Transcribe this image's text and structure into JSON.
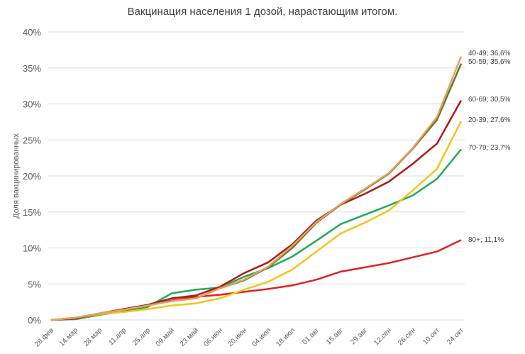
{
  "chart_data": {
    "type": "line",
    "title": "Вакцинация населения 1 дозой, нарастающим итогом.",
    "xlabel": "",
    "ylabel": "Доля вакцинированных",
    "ylim": [
      0,
      40
    ],
    "yticks": [
      "0%",
      "5%",
      "10%",
      "15%",
      "20%",
      "25%",
      "30%",
      "35%",
      "40%"
    ],
    "grid": true,
    "legend_position": "right end labels",
    "categories": [
      "28.фев",
      "14.мар",
      "28.мар",
      "11.апр",
      "25.апр",
      "09.май",
      "23.май",
      "06.июн",
      "20.июн",
      "04.июл",
      "18.июл",
      "01.авг",
      "15.авг",
      "29.авг",
      "12.сен",
      "26.сен",
      "10.окт",
      "24.окт"
    ],
    "series": [
      {
        "name": "40-49",
        "label": "40-49; 36,6%",
        "color": "#e8a060",
        "values": [
          0,
          0.3,
          0.9,
          1.4,
          2.0,
          2.6,
          3.0,
          4.4,
          5.6,
          7.4,
          10.3,
          13.6,
          16.1,
          18.2,
          20.4,
          23.9,
          28.2,
          36.6
        ]
      },
      {
        "name": "50-59",
        "label": "50-59; 35,6%",
        "color": "#5a7a2a",
        "values": [
          0,
          0.3,
          0.9,
          1.4,
          2.0,
          2.7,
          3.0,
          4.4,
          5.5,
          7.3,
          10.0,
          13.5,
          16.0,
          18.1,
          20.3,
          23.8,
          27.8,
          35.6
        ]
      },
      {
        "name": "60-69",
        "label": "60-69; 30,5%",
        "color": "#b01818",
        "values": [
          0,
          0.2,
          0.9,
          1.5,
          2.1,
          3.0,
          3.4,
          4.6,
          6.5,
          8.0,
          10.5,
          13.8,
          16.0,
          17.5,
          19.2,
          21.7,
          24.5,
          30.5
        ]
      },
      {
        "name": "20-39",
        "label": "20-39; 27,6%",
        "color": "#f2c419",
        "values": [
          0,
          0.2,
          0.8,
          1.1,
          1.5,
          2.0,
          2.3,
          3.0,
          4.2,
          5.3,
          7.0,
          9.5,
          12.0,
          13.5,
          15.2,
          18.0,
          21.0,
          27.6
        ]
      },
      {
        "name": "70-79",
        "label": "70-79; 23,7%",
        "color": "#1faa55",
        "values": [
          0,
          0.1,
          0.7,
          1.2,
          1.8,
          3.7,
          4.2,
          4.5,
          6.0,
          7.2,
          8.8,
          11.0,
          13.3,
          14.6,
          15.9,
          17.3,
          19.6,
          23.7
        ]
      },
      {
        "name": "80+",
        "label": "80+; 11,1%",
        "color": "#e02020",
        "values": [
          0,
          0.2,
          0.8,
          1.3,
          2.0,
          2.7,
          3.2,
          3.5,
          3.9,
          4.3,
          4.8,
          5.6,
          6.7,
          7.3,
          7.9,
          8.7,
          9.5,
          11.1
        ]
      }
    ]
  }
}
